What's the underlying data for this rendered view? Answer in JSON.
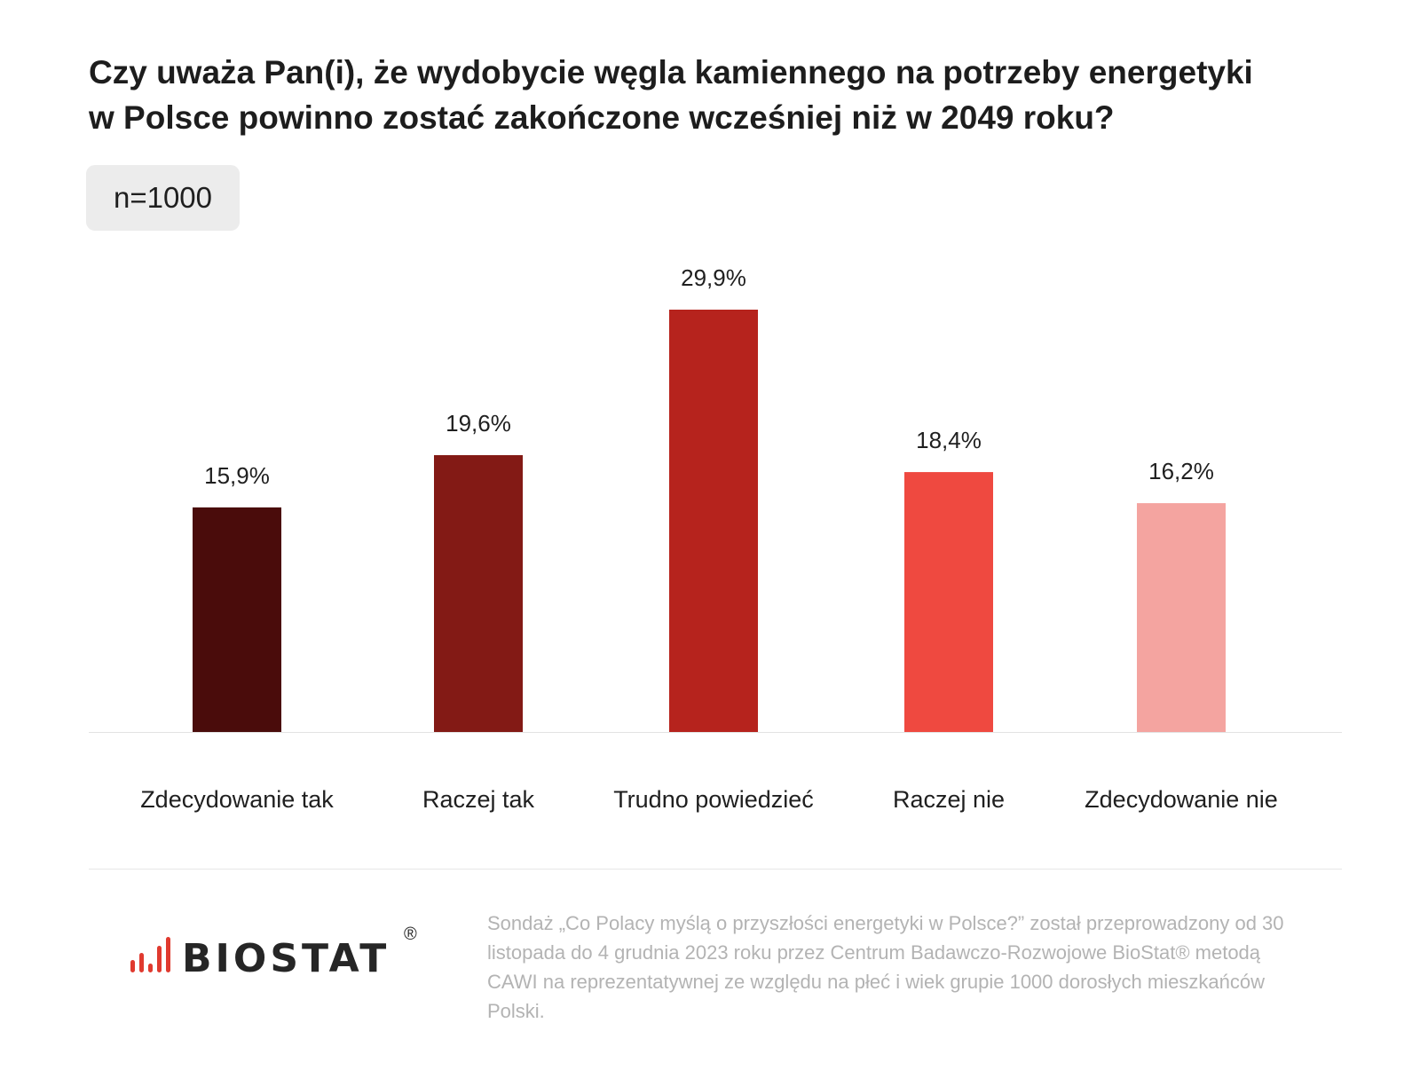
{
  "title": "Czy uważa Pan(i), że wydobycie węgla kamiennego na potrzeby energetyki\nw Polsce powinno zostać zakończone wcześniej niż w 2049 roku?",
  "sample_label": "n=1000",
  "chart_data": {
    "type": "bar",
    "title": "Czy uważa Pan(i), że wydobycie węgla kamiennego na potrzeby energetyki w Polsce powinno zostać zakończone wcześniej niż w 2049 roku?",
    "xlabel": "",
    "ylabel": "",
    "categories": [
      "Zdecydowanie tak",
      "Raczej tak",
      "Trudno powiedzieć",
      "Raczej nie",
      "Zdecydowanie nie"
    ],
    "values": [
      15.9,
      19.6,
      29.9,
      18.4,
      16.2
    ],
    "value_labels": [
      "15,9%",
      "19,6%",
      "29,9%",
      "18,4%",
      "16,2%"
    ],
    "colors": [
      "#4a0c0b",
      "#831a15",
      "#b6231d",
      "#ef4940",
      "#f4a4a0"
    ],
    "ylim": [
      0,
      29.9
    ],
    "grid": false,
    "legend": "none"
  },
  "logo": {
    "text": "BIOSTAT",
    "registered": "®",
    "bar_color": "#e03a2f"
  },
  "footnote": "Sondaż „Co Polacy myślą o przyszłości energetyki w Polsce?” został przeprowadzony od 30 listopada do 4 grudnia 2023 roku przez Centrum Badawczo-Rozwojowe BioStat® metodą CAWI na reprezentatywnej ze względu na płeć i wiek grupie 1000 dorosłych mieszkańców Polski."
}
